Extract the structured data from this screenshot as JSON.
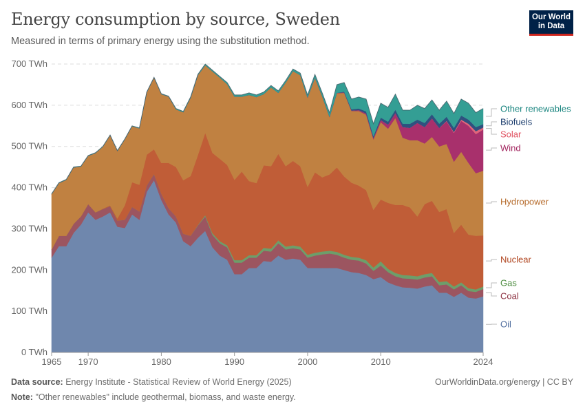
{
  "header": {
    "title": "Energy consumption by source, Sweden",
    "subtitle": "Measured in terms of primary energy using the substitution method.",
    "logo_line1": "Our World",
    "logo_line2": "in Data"
  },
  "footer": {
    "source_label": "Data source:",
    "source_text": "Energy Institute - Statistical Review of World Energy (2025)",
    "url_license": "OurWorldinData.org/energy | CC BY",
    "note_label": "Note:",
    "note_text": "\"Other renewables\" include geothermal, biomass, and waste energy."
  },
  "chart_data": {
    "type": "area",
    "stacked": true,
    "title": "Energy consumption by source, Sweden",
    "ylabel": "TWh",
    "ylim": [
      0,
      700
    ],
    "yticks": [
      0,
      100,
      200,
      300,
      400,
      500,
      600,
      700
    ],
    "ytick_labels": [
      "0 TWh",
      "100 TWh",
      "200 TWh",
      "300 TWh",
      "400 TWh",
      "500 TWh",
      "600 TWh",
      "700 TWh"
    ],
    "xticks": [
      1965,
      1970,
      1980,
      1990,
      2000,
      2010,
      2024
    ],
    "xtick_labels": [
      "1965",
      "1970",
      "1980",
      "1990",
      "2000",
      "2010",
      "2024"
    ],
    "grid": true,
    "legend_placement": "right, inline labels",
    "x": [
      1965,
      1966,
      1967,
      1968,
      1969,
      1970,
      1971,
      1972,
      1973,
      1974,
      1975,
      1976,
      1977,
      1978,
      1979,
      1980,
      1981,
      1982,
      1983,
      1984,
      1985,
      1986,
      1987,
      1988,
      1989,
      1990,
      1991,
      1992,
      1993,
      1994,
      1995,
      1996,
      1997,
      1998,
      1999,
      2000,
      2001,
      2002,
      2003,
      2004,
      2005,
      2006,
      2007,
      2008,
      2009,
      2010,
      2011,
      2012,
      2013,
      2014,
      2015,
      2016,
      2017,
      2018,
      2019,
      2020,
      2021,
      2022,
      2023,
      2024
    ],
    "series": [
      {
        "name": "Oil",
        "color": "#6f87ad",
        "label_color": "#4c6a9c",
        "values": [
          230,
          258,
          258,
          290,
          310,
          340,
          322,
          330,
          340,
          305,
          302,
          335,
          322,
          390,
          418,
          370,
          335,
          315,
          270,
          258,
          278,
          295,
          255,
          235,
          225,
          190,
          190,
          205,
          205,
          222,
          220,
          235,
          225,
          228,
          225,
          205,
          205,
          205,
          205,
          205,
          200,
          195,
          193,
          188,
          178,
          183,
          170,
          163,
          158,
          157,
          155,
          160,
          163,
          145,
          145,
          135,
          145,
          133,
          131,
          136
        ]
      },
      {
        "name": "Coal",
        "color": "#9c5560",
        "label_color": "#8c3040",
        "values": [
          20,
          25,
          25,
          22,
          20,
          20,
          18,
          18,
          15,
          15,
          20,
          18,
          20,
          15,
          15,
          15,
          15,
          15,
          18,
          25,
          30,
          35,
          30,
          30,
          30,
          28,
          28,
          25,
          25,
          25,
          25,
          30,
          25,
          25,
          25,
          25,
          30,
          33,
          35,
          32,
          30,
          30,
          30,
          28,
          20,
          28,
          25,
          22,
          22,
          22,
          22,
          22,
          22,
          18,
          20,
          18,
          18,
          16,
          16,
          18
        ]
      },
      {
        "name": "Gas",
        "color": "#6d9e6a",
        "label_color": "#4c8c3f",
        "values": [
          0,
          0,
          0,
          0,
          0,
          0,
          0,
          0,
          0,
          0,
          0,
          0,
          0,
          0,
          0,
          0,
          0,
          0,
          0,
          0,
          1,
          3,
          4,
          5,
          5,
          6,
          6,
          6,
          6,
          7,
          7,
          7,
          7,
          7,
          7,
          7,
          7,
          7,
          7,
          7,
          7,
          7,
          7,
          8,
          8,
          10,
          8,
          8,
          8,
          8,
          8,
          8,
          8,
          8,
          8,
          7,
          7,
          7,
          6,
          6
        ]
      },
      {
        "name": "Nuclear",
        "color": "#c05d37",
        "label_color": "#b0451f",
        "values": [
          0,
          0,
          0,
          0,
          0,
          0,
          0,
          1,
          2,
          5,
          35,
          60,
          65,
          75,
          60,
          75,
          110,
          120,
          130,
          145,
          170,
          200,
          195,
          200,
          195,
          195,
          215,
          180,
          175,
          200,
          200,
          210,
          195,
          205,
          195,
          165,
          195,
          180,
          185,
          205,
          190,
          180,
          175,
          170,
          140,
          150,
          160,
          165,
          170,
          165,
          145,
          170,
          175,
          170,
          175,
          130,
          140,
          130,
          130,
          124
        ]
      },
      {
        "name": "Hydropower",
        "color": "#c08141",
        "label_color": "#b56a2a",
        "values": [
          134,
          128,
          136,
          137,
          121,
          117,
          144,
          150,
          170,
          164,
          160,
          136,
          137,
          151,
          174,
          167,
          161,
          140,
          165,
          190,
          194,
          164,
          198,
          197,
          196,
          202,
          182,
          209,
          209,
          173,
          191,
          148,
          203,
          218,
          221,
          216,
          229,
          196,
          139,
          180,
          203,
          174,
          181,
          183,
          171,
          188,
          180,
          211,
          163,
          163,
          185,
          147,
          155,
          159,
          158,
          173,
          177,
          174,
          152,
          157
        ]
      },
      {
        "name": "Wind",
        "color": "#a8306c",
        "label_color": "#a2255f",
        "values": [
          0,
          0,
          0,
          0,
          0,
          0,
          0,
          0,
          0,
          0,
          0,
          0,
          0,
          0,
          0,
          0,
          0,
          0,
          0,
          0,
          0,
          0,
          0,
          0,
          0,
          0,
          0,
          0,
          0,
          0,
          0,
          0,
          0,
          0,
          0,
          1,
          1,
          1,
          1,
          1,
          1,
          1,
          2,
          3,
          3,
          5,
          10,
          12,
          26,
          30,
          42,
          40,
          45,
          45,
          55,
          70,
          75,
          90,
          95,
          100
        ]
      },
      {
        "name": "Solar",
        "color": "#e0657a",
        "label_color": "#e0505f",
        "values": [
          0,
          0,
          0,
          0,
          0,
          0,
          0,
          0,
          0,
          0,
          0,
          0,
          0,
          0,
          0,
          0,
          0,
          0,
          0,
          0,
          0,
          0,
          0,
          0,
          0,
          0,
          0,
          0,
          0,
          0,
          0,
          0,
          0,
          0,
          0,
          0,
          0,
          0,
          0,
          0,
          0,
          0,
          0,
          0,
          0,
          0,
          0,
          0,
          0,
          0,
          0,
          0,
          0,
          0,
          1,
          2,
          3,
          5,
          7,
          5
        ]
      },
      {
        "name": "Biofuels",
        "color": "#2f517f",
        "label_color": "#183a6b",
        "values": [
          0,
          0,
          0,
          0,
          0,
          0,
          0,
          0,
          0,
          0,
          0,
          0,
          0,
          0,
          0,
          0,
          0,
          0,
          0,
          0,
          0,
          0,
          0,
          0,
          0,
          0,
          0,
          0,
          0,
          0,
          0,
          0,
          0,
          0,
          0,
          0,
          0,
          0,
          0,
          0,
          2,
          3,
          4,
          5,
          5,
          6,
          7,
          8,
          8,
          10,
          8,
          10,
          10,
          10,
          10,
          10,
          10,
          10,
          10,
          8
        ]
      },
      {
        "name": "Other renewables",
        "color": "#349e94",
        "label_color": "#19857f",
        "values": [
          1,
          1,
          1,
          1,
          1,
          1,
          1,
          1,
          1,
          1,
          1,
          1,
          1,
          1,
          1,
          1,
          1,
          2,
          2,
          2,
          2,
          3,
          3,
          3,
          4,
          4,
          4,
          5,
          5,
          5,
          5,
          5,
          5,
          5,
          5,
          6,
          8,
          8,
          10,
          20,
          22,
          25,
          28,
          30,
          30,
          35,
          35,
          38,
          33,
          33,
          35,
          35,
          35,
          33,
          38,
          35,
          40,
          40,
          35,
          38
        ]
      }
    ]
  }
}
